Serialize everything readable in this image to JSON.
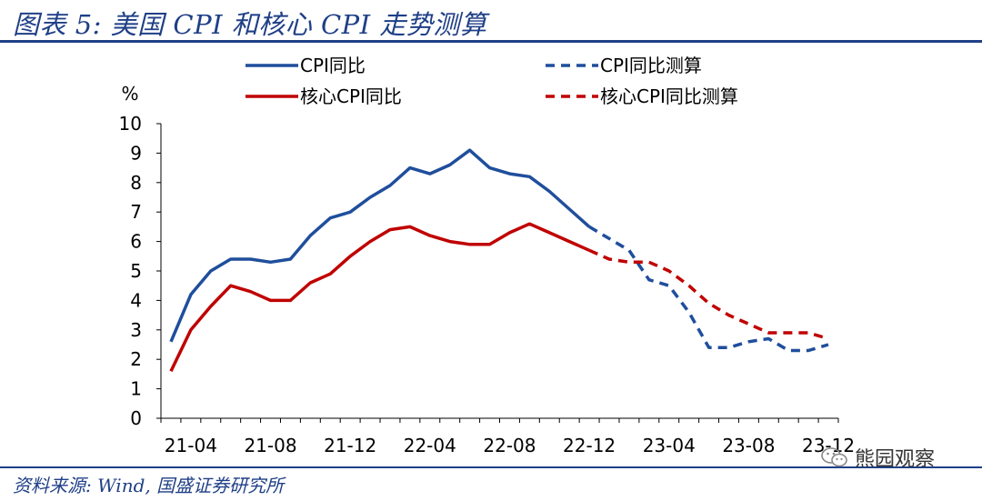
{
  "header": {
    "title": "图表 5: 美国 CPI 和核心 CPI 走势测算"
  },
  "footer": {
    "source": "资料来源: Wind, 国盛证券研究所",
    "watermark": "熊园观察"
  },
  "colors": {
    "title": "#1f3f87",
    "cpi": "#1f4e9c",
    "core": "#c00000"
  },
  "chart_data": {
    "type": "line",
    "ylabel": "%",
    "ylim": [
      0,
      10
    ],
    "yticks": [
      0,
      1,
      2,
      3,
      4,
      5,
      6,
      7,
      8,
      9,
      10
    ],
    "xlabel": "",
    "xticks": [
      "21-04",
      "21-08",
      "21-12",
      "22-04",
      "22-08",
      "22-12",
      "23-04",
      "23-08",
      "23-12"
    ],
    "x": [
      "21-03",
      "21-04",
      "21-05",
      "21-06",
      "21-07",
      "21-08",
      "21-09",
      "21-10",
      "21-11",
      "21-12",
      "22-01",
      "22-02",
      "22-03",
      "22-04",
      "22-05",
      "22-06",
      "22-07",
      "22-08",
      "22-09",
      "22-10",
      "22-11",
      "22-12",
      "23-01",
      "23-02",
      "23-03",
      "23-04",
      "23-05",
      "23-06",
      "23-07",
      "23-08",
      "23-09",
      "23-10",
      "23-11",
      "23-12"
    ],
    "legend": {
      "placement": "top"
    },
    "series": [
      {
        "name": "CPI同比",
        "style": "solid",
        "color": "#1f4e9c",
        "values": [
          2.6,
          4.2,
          5.0,
          5.4,
          5.4,
          5.3,
          5.4,
          6.2,
          6.8,
          7.0,
          7.5,
          7.9,
          8.5,
          8.3,
          8.6,
          9.1,
          8.5,
          8.3,
          8.2,
          7.7,
          7.1,
          6.5,
          null,
          null,
          null,
          null,
          null,
          null,
          null,
          null,
          null,
          null,
          null,
          null
        ]
      },
      {
        "name": "CPI同比测算",
        "style": "dashed",
        "color": "#1f4e9c",
        "values": [
          null,
          null,
          null,
          null,
          null,
          null,
          null,
          null,
          null,
          null,
          null,
          null,
          null,
          null,
          null,
          null,
          null,
          null,
          null,
          null,
          null,
          6.5,
          6.1,
          5.7,
          4.7,
          4.5,
          3.6,
          2.4,
          2.4,
          2.6,
          2.7,
          2.3,
          2.3,
          2.5
        ]
      },
      {
        "name": "核心CPI同比",
        "style": "solid",
        "color": "#c00000",
        "values": [
          1.6,
          3.0,
          3.8,
          4.5,
          4.3,
          4.0,
          4.0,
          4.6,
          4.9,
          5.5,
          6.0,
          6.4,
          6.5,
          6.2,
          6.0,
          5.9,
          5.9,
          6.3,
          6.6,
          6.3,
          6.0,
          5.7,
          null,
          null,
          null,
          null,
          null,
          null,
          null,
          null,
          null,
          null,
          null,
          null
        ]
      },
      {
        "name": "核心CPI同比测算",
        "style": "dashed",
        "color": "#c00000",
        "values": [
          null,
          null,
          null,
          null,
          null,
          null,
          null,
          null,
          null,
          null,
          null,
          null,
          null,
          null,
          null,
          null,
          null,
          null,
          null,
          null,
          null,
          5.7,
          5.4,
          5.3,
          5.3,
          5.0,
          4.5,
          3.9,
          3.5,
          3.2,
          2.9,
          2.9,
          2.9,
          2.7
        ]
      }
    ]
  }
}
